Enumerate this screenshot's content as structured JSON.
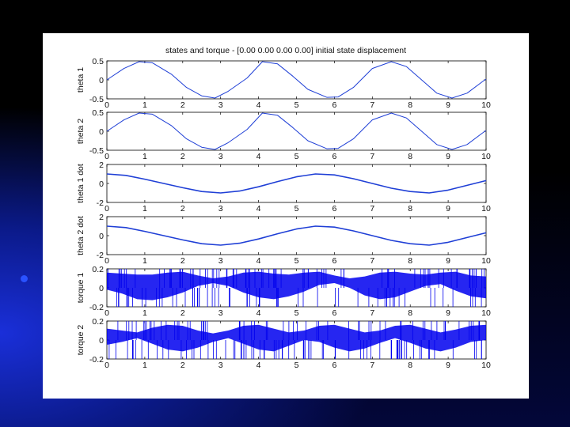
{
  "slide": {
    "bullet_color": "#2a52ff"
  },
  "figure": {
    "title": "states and torque - [0.00 0.00 0.00 0.00] initial state displacement",
    "line_color": "#1f3fd6",
    "torque_color": "#0000ee"
  },
  "chart_data": [
    {
      "type": "line",
      "ylabel": "theta 1",
      "xlim": [
        0,
        10
      ],
      "ylim": [
        -0.5,
        0.5
      ],
      "xticks": [
        "0",
        "1",
        "2",
        "3",
        "4",
        "5",
        "6",
        "7",
        "8",
        "9",
        "10"
      ],
      "yticks": [
        "0.5",
        "0",
        "-0.5"
      ],
      "series": [
        {
          "values": {
            "x": [
              0,
              0.45,
              0.85,
              1.2,
              1.7,
              2.1,
              2.5,
              2.85,
              3.2,
              3.7,
              4.1,
              4.5,
              4.9,
              5.3,
              5.8,
              6.1,
              6.5,
              7.0,
              7.5,
              7.9,
              8.3,
              8.7,
              9.1,
              9.5,
              9.9,
              10
            ],
            "y": [
              0,
              0.3,
              0.48,
              0.45,
              0.15,
              -0.2,
              -0.42,
              -0.48,
              -0.3,
              0.05,
              0.48,
              0.42,
              0.1,
              -0.25,
              -0.46,
              -0.45,
              -0.2,
              0.3,
              0.48,
              0.35,
              0.0,
              -0.35,
              -0.48,
              -0.35,
              -0.05,
              0.02
            ]
          }
        }
      ]
    },
    {
      "type": "line",
      "ylabel": "theta 2",
      "xlim": [
        0,
        10
      ],
      "ylim": [
        -0.5,
        0.5
      ],
      "xticks": [
        "0",
        "1",
        "2",
        "3",
        "4",
        "5",
        "6",
        "7",
        "8",
        "9",
        "10"
      ],
      "yticks": [
        "0.5",
        "0",
        "-0.5"
      ],
      "series": [
        {
          "values": {
            "x": [
              0,
              0.45,
              0.85,
              1.2,
              1.7,
              2.1,
              2.5,
              2.85,
              3.2,
              3.7,
              4.1,
              4.5,
              4.9,
              5.3,
              5.8,
              6.1,
              6.5,
              7.0,
              7.5,
              7.9,
              8.3,
              8.7,
              9.1,
              9.5,
              9.9,
              10
            ],
            "y": [
              0,
              0.3,
              0.48,
              0.45,
              0.15,
              -0.2,
              -0.42,
              -0.48,
              -0.3,
              0.05,
              0.48,
              0.42,
              0.1,
              -0.25,
              -0.46,
              -0.45,
              -0.2,
              0.3,
              0.48,
              0.35,
              0.0,
              -0.35,
              -0.48,
              -0.35,
              -0.05,
              0.02
            ]
          }
        }
      ]
    },
    {
      "type": "line",
      "ylabel": "theta 1 dot",
      "xlim": [
        0,
        10
      ],
      "ylim": [
        -2,
        2
      ],
      "xticks": [
        "0",
        "1",
        "2",
        "3",
        "4",
        "5",
        "6",
        "7",
        "8",
        "9",
        "10"
      ],
      "yticks": [
        "2",
        "0",
        "-2"
      ],
      "series": [
        {
          "values": {
            "x": [
              0,
              0.5,
              1.0,
              1.5,
              2.0,
              2.5,
              3.0,
              3.5,
              4.0,
              4.5,
              5.0,
              5.5,
              6.0,
              6.5,
              7.0,
              7.5,
              8.0,
              8.5,
              9.0,
              9.5,
              10
            ],
            "y": [
              1.0,
              0.85,
              0.45,
              0.0,
              -0.45,
              -0.85,
              -1.0,
              -0.8,
              -0.35,
              0.2,
              0.7,
              1.0,
              0.9,
              0.5,
              0.0,
              -0.5,
              -0.85,
              -1.0,
              -0.7,
              -0.2,
              0.3
            ]
          }
        }
      ]
    },
    {
      "type": "line",
      "ylabel": "theta 2 dot",
      "xlim": [
        0,
        10
      ],
      "ylim": [
        -2,
        2
      ],
      "xticks": [
        "0",
        "1",
        "2",
        "3",
        "4",
        "5",
        "6",
        "7",
        "8",
        "9",
        "10"
      ],
      "yticks": [
        "2",
        "0",
        "-2"
      ],
      "series": [
        {
          "values": {
            "x": [
              0,
              0.5,
              1.0,
              1.5,
              2.0,
              2.5,
              3.0,
              3.5,
              4.0,
              4.5,
              5.0,
              5.5,
              6.0,
              6.5,
              7.0,
              7.5,
              8.0,
              8.5,
              9.0,
              9.5,
              10
            ],
            "y": [
              1.0,
              0.85,
              0.45,
              0.0,
              -0.45,
              -0.85,
              -1.0,
              -0.8,
              -0.35,
              0.2,
              0.7,
              1.0,
              0.9,
              0.5,
              0.0,
              -0.5,
              -0.85,
              -1.0,
              -0.7,
              -0.2,
              0.3
            ]
          }
        }
      ]
    },
    {
      "type": "area",
      "ylabel": "torque 1",
      "xlim": [
        0,
        10
      ],
      "ylim": [
        -0.2,
        0.2
      ],
      "xticks": [
        "0",
        "1",
        "2",
        "3",
        "4",
        "5",
        "6",
        "7",
        "8",
        "9",
        "10"
      ],
      "yticks": [
        "0.2",
        "0",
        "-0.2"
      ],
      "series": [
        {
          "values": {
            "x": [
              0,
              0.4,
              0.8,
              1.2,
              1.6,
              2.0,
              2.4,
              2.8,
              3.2,
              3.6,
              4.0,
              4.4,
              4.8,
              5.2,
              5.6,
              6.0,
              6.4,
              6.8,
              7.2,
              7.6,
              8.0,
              8.4,
              8.8,
              9.2,
              9.6,
              10
            ],
            "upper": [
              0.16,
              0.15,
              0.14,
              0.14,
              0.16,
              0.17,
              0.13,
              0.1,
              0.12,
              0.16,
              0.17,
              0.15,
              0.14,
              0.16,
              0.17,
              0.13,
              0.1,
              0.12,
              0.16,
              0.17,
              0.15,
              0.14,
              0.16,
              0.17,
              0.13,
              0.12
            ],
            "lower": [
              -0.02,
              -0.06,
              -0.12,
              -0.13,
              -0.1,
              -0.05,
              0.02,
              0.05,
              0.02,
              -0.05,
              -0.1,
              -0.12,
              -0.09,
              -0.04,
              0.03,
              0.05,
              0.0,
              -0.08,
              -0.12,
              -0.1,
              -0.04,
              0.02,
              0.04,
              -0.03,
              -0.09,
              -0.11
            ]
          }
        }
      ]
    },
    {
      "type": "area",
      "ylabel": "torque 2",
      "xlim": [
        0,
        10
      ],
      "ylim": [
        -0.2,
        0.2
      ],
      "xticks": [
        "0",
        "1",
        "2",
        "3",
        "4",
        "5",
        "6",
        "7",
        "8",
        "9",
        "10"
      ],
      "yticks": [
        "0.2",
        "0",
        "-0.2"
      ],
      "series": [
        {
          "values": {
            "x": [
              0,
              0.4,
              0.8,
              1.2,
              1.6,
              2.0,
              2.4,
              2.8,
              3.2,
              3.6,
              4.0,
              4.4,
              4.8,
              5.2,
              5.6,
              6.0,
              6.4,
              6.8,
              7.2,
              7.6,
              8.0,
              8.4,
              8.8,
              9.2,
              9.6,
              10
            ],
            "upper": [
              0.12,
              0.1,
              0.08,
              0.13,
              0.16,
              0.15,
              0.1,
              0.07,
              0.1,
              0.15,
              0.16,
              0.12,
              0.08,
              0.1,
              0.15,
              0.16,
              0.12,
              0.08,
              0.1,
              0.15,
              0.16,
              0.12,
              0.08,
              0.11,
              0.15,
              0.16
            ],
            "lower": [
              -0.05,
              -0.02,
              0.02,
              -0.04,
              -0.1,
              -0.12,
              -0.08,
              -0.02,
              0.02,
              -0.04,
              -0.1,
              -0.12,
              -0.06,
              0.0,
              -0.02,
              -0.08,
              -0.12,
              -0.09,
              -0.03,
              0.02,
              -0.03,
              -0.09,
              -0.12,
              -0.08,
              -0.02,
              0.0
            ]
          }
        }
      ]
    }
  ]
}
